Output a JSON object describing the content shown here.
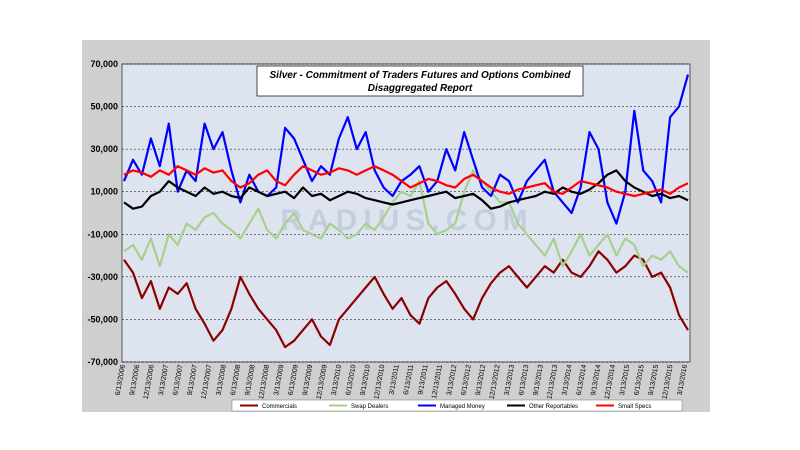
{
  "chart_data": {
    "type": "line",
    "title_line1": "Silver - Commitment of Traders Futures and Options Combined",
    "title_line2": "Disaggregated  Report",
    "watermark": "RADIUS.COM",
    "ylim": [
      -70000,
      70000
    ],
    "yticks": [
      "70,000",
      "50,000",
      "30,000",
      "10,000",
      "-10,000",
      "-30,000",
      "-50,000",
      "-70,000"
    ],
    "x_labels": [
      "6/13/2006",
      "9/13/2006",
      "12/13/2006",
      "3/13/2007",
      "6/13/2007",
      "9/13/2007",
      "12/13/2007",
      "3/13/2008",
      "6/13/2008",
      "9/13/2008",
      "12/13/2008",
      "3/13/2009",
      "6/13/2009",
      "9/13/2009",
      "12/13/2009",
      "3/13/2010",
      "6/13/2010",
      "9/13/2010",
      "12/13/2010",
      "3/13/2011",
      "6/13/2011",
      "9/13/2011",
      "12/13/2011",
      "3/13/2012",
      "6/13/2012",
      "9/13/2012",
      "12/13/2012",
      "3/13/2013",
      "6/13/2013",
      "9/13/2013",
      "12/13/2013",
      "3/13/2014",
      "6/13/2014",
      "9/13/2014",
      "12/13/2014",
      "3/13/2015",
      "6/13/2015",
      "9/13/2015",
      "12/13/2015",
      "3/13/2016"
    ],
    "series": [
      {
        "name": "Commercials",
        "color": "#8b0000",
        "values": [
          -22000,
          -28000,
          -40000,
          -32000,
          -45000,
          -35000,
          -38000,
          -33000,
          -45000,
          -52000,
          -60000,
          -55000,
          -45000,
          -30000,
          -38000,
          -45000,
          -50000,
          -55000,
          -63000,
          -60000,
          -55000,
          -50000,
          -58000,
          -62000,
          -50000,
          -45000,
          -40000,
          -35000,
          -30000,
          -38000,
          -45000,
          -40000,
          -48000,
          -52000,
          -40000,
          -35000,
          -32000,
          -38000,
          -45000,
          -50000,
          -40000,
          -33000,
          -28000,
          -25000,
          -30000,
          -35000,
          -30000,
          -25000,
          -28000,
          -22000,
          -28000,
          -30000,
          -25000,
          -18000,
          -22000,
          -28000,
          -25000,
          -20000,
          -22000,
          -30000,
          -28000,
          -35000,
          -48000,
          -55000
        ]
      },
      {
        "name": "Swap Dealers",
        "color": "#a8d08d",
        "values": [
          -18000,
          -15000,
          -22000,
          -12000,
          -25000,
          -10000,
          -15000,
          -5000,
          -8000,
          -2000,
          0,
          -5000,
          -8000,
          -12000,
          -5000,
          2000,
          -8000,
          -12000,
          -5000,
          0,
          -8000,
          -10000,
          -12000,
          -5000,
          -8000,
          -12000,
          -10000,
          -5000,
          -8000,
          -2000,
          5000,
          10000,
          8000,
          15000,
          -5000,
          -10000,
          -8000,
          -5000,
          10000,
          20000,
          15000,
          10000,
          5000,
          5000,
          -5000,
          -10000,
          -15000,
          -20000,
          -12000,
          -25000,
          -18000,
          -10000,
          -20000,
          -15000,
          -10000,
          -20000,
          -12000,
          -15000,
          -25000,
          -20000,
          -22000,
          -18000,
          -25000,
          -28000
        ]
      },
      {
        "name": "Managed Money",
        "color": "#0000ff",
        "values": [
          15000,
          25000,
          18000,
          35000,
          22000,
          42000,
          10000,
          20000,
          15000,
          42000,
          30000,
          38000,
          20000,
          5000,
          18000,
          10000,
          8000,
          12000,
          40000,
          35000,
          25000,
          15000,
          22000,
          18000,
          35000,
          45000,
          30000,
          38000,
          20000,
          12000,
          8000,
          15000,
          18000,
          22000,
          10000,
          15000,
          30000,
          20000,
          38000,
          25000,
          12000,
          8000,
          18000,
          15000,
          5000,
          15000,
          20000,
          25000,
          10000,
          5000,
          0,
          12000,
          38000,
          30000,
          5000,
          -5000,
          10000,
          48000,
          20000,
          15000,
          5000,
          45000,
          50000,
          65000
        ]
      },
      {
        "name": "Other Reportables",
        "color": "#000000",
        "values": [
          5000,
          2000,
          3000,
          8000,
          10000,
          15000,
          12000,
          10000,
          8000,
          12000,
          9000,
          10000,
          8000,
          7000,
          12000,
          10000,
          8000,
          9000,
          10000,
          7000,
          12000,
          8000,
          9000,
          6000,
          8000,
          10000,
          9000,
          7000,
          6000,
          5000,
          4000,
          5000,
          6000,
          7000,
          8000,
          9000,
          10000,
          7000,
          8000,
          9000,
          6000,
          2000,
          3000,
          5000,
          6000,
          7000,
          8000,
          10000,
          9000,
          12000,
          10000,
          9000,
          11000,
          14000,
          18000,
          20000,
          15000,
          12000,
          10000,
          8000,
          9000,
          7000,
          8000,
          6000
        ]
      },
      {
        "name": "Small Specs",
        "color": "#ff0000",
        "values": [
          18000,
          20000,
          19000,
          17000,
          20000,
          18000,
          22000,
          20000,
          18000,
          21000,
          19000,
          20000,
          15000,
          12000,
          14000,
          18000,
          20000,
          15000,
          13000,
          18000,
          22000,
          20000,
          18000,
          19000,
          21000,
          20000,
          18000,
          20000,
          22000,
          20000,
          18000,
          15000,
          12000,
          14000,
          16000,
          15000,
          13000,
          12000,
          16000,
          18000,
          15000,
          12000,
          10000,
          9000,
          11000,
          12000,
          13000,
          14000,
          10000,
          9000,
          12000,
          15000,
          14000,
          13000,
          12000,
          10000,
          9000,
          8000,
          9000,
          10000,
          11000,
          9000,
          12000,
          14000
        ]
      }
    ]
  }
}
